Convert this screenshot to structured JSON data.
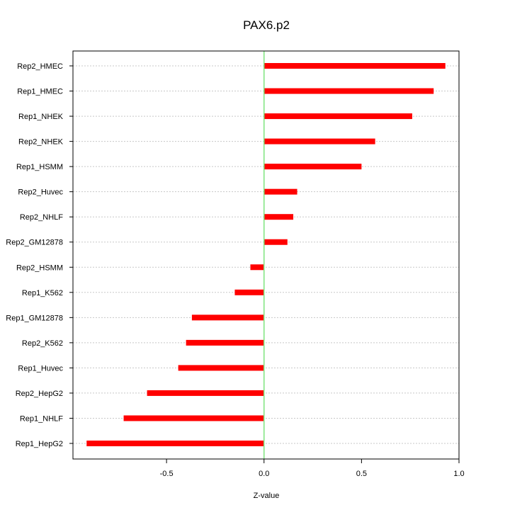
{
  "chart_data": {
    "type": "bar",
    "orientation": "horizontal",
    "title": "PAX6.p2",
    "xlabel": "Z-value",
    "ylabel": "",
    "xlim": [
      -0.98,
      1.0
    ],
    "xticks": [
      -0.5,
      0.0,
      0.5,
      1.0
    ],
    "xtick_labels": [
      "-0.5",
      "0.0",
      "0.5",
      "1.0"
    ],
    "reference_line": 0,
    "grid": "horizontal dotted",
    "categories": [
      "Rep2_HMEC",
      "Rep1_HMEC",
      "Rep1_NHEK",
      "Rep2_NHEK",
      "Rep1_HSMM",
      "Rep2_Huvec",
      "Rep2_NHLF",
      "Rep2_GM12878",
      "Rep2_HSMM",
      "Rep1_K562",
      "Rep1_GM12878",
      "Rep2_K562",
      "Rep1_Huvec",
      "Rep2_HepG2",
      "Rep1_NHLF",
      "Rep1_HepG2"
    ],
    "values": [
      0.93,
      0.87,
      0.76,
      0.57,
      0.5,
      0.17,
      0.15,
      0.12,
      -0.07,
      -0.15,
      -0.37,
      -0.4,
      -0.44,
      -0.6,
      -0.72,
      -0.91
    ],
    "colors": {
      "bar": "#ff0000",
      "reference_line": "#7fe57f"
    }
  }
}
